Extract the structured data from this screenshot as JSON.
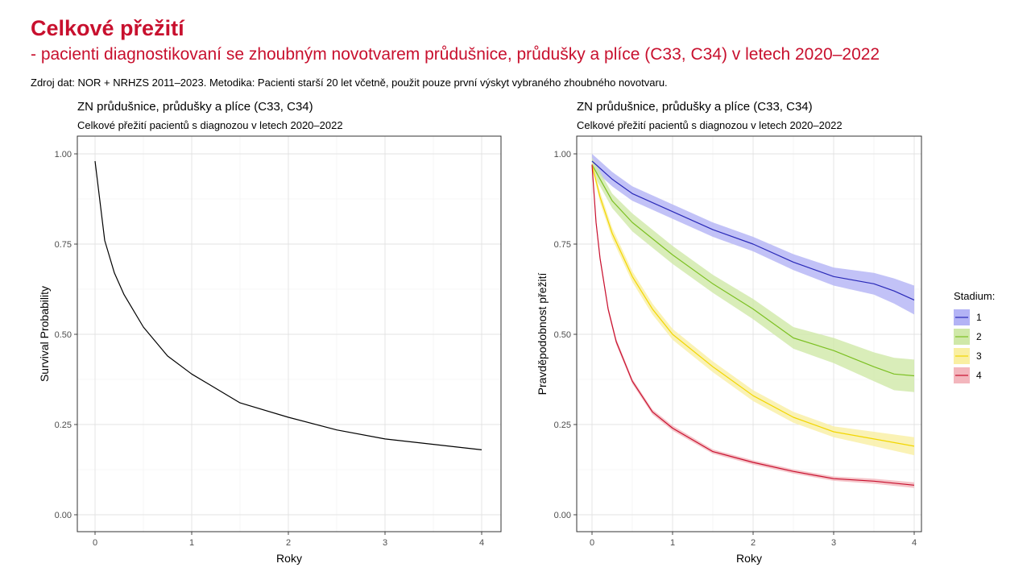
{
  "header": {
    "title": "Celkové přežití",
    "subtitle": "- pacienti diagnostikovaní se zhoubným novotvarem průdušnice, průdušky a plíce (C33, C34) v letech 2020–2022",
    "source": "Zdroj dat: NOR + NRHZS 2011–2023. Metodika: Pacienti starší 20 let včetně, použit pouze první výskyt vybraného zhoubného novotvaru."
  },
  "chart_data": [
    {
      "type": "line",
      "title": "ZN průdušnice, průdušky a plíce (C33, C34)",
      "subtitle": "Celkové přežití pacientů s diagnozou v letech 2020–2022",
      "xlabel": "Roky",
      "ylabel": "Survival Probability",
      "xlim": [
        0,
        4
      ],
      "ylim": [
        0,
        1
      ],
      "xticks": [
        "0",
        "1",
        "2",
        "3",
        "4"
      ],
      "yticks": [
        "0.00",
        "0.25",
        "0.50",
        "0.75",
        "1.00"
      ],
      "grid": true,
      "series": [
        {
          "color": "#000000",
          "x": [
            0,
            0.1,
            0.2,
            0.3,
            0.5,
            0.75,
            1.0,
            1.5,
            2.0,
            2.5,
            3.0,
            3.5,
            4.0
          ],
          "values": [
            0.98,
            0.76,
            0.67,
            0.61,
            0.52,
            0.44,
            0.39,
            0.31,
            0.27,
            0.235,
            0.21,
            0.195,
            0.18
          ]
        }
      ]
    },
    {
      "type": "line",
      "title": "ZN průdušnice, průdušky a plíce (C33, C34)",
      "subtitle": "Celkové přežití pacientů s diagnozou v letech 2020–2022",
      "xlabel": "Roky",
      "ylabel": "Pravděpodobnost přežití",
      "xlim": [
        0,
        4
      ],
      "ylim": [
        0,
        1
      ],
      "xticks": [
        "0",
        "1",
        "2",
        "3",
        "4"
      ],
      "yticks": [
        "0.00",
        "0.25",
        "0.50",
        "0.75",
        "1.00"
      ],
      "grid": true,
      "legend": {
        "title": "Stadium:",
        "position": "right"
      },
      "series": [
        {
          "name": "1",
          "color": "#2929b8",
          "fill": "#b3b3f5",
          "x": [
            0,
            0.25,
            0.5,
            1.0,
            1.5,
            2.0,
            2.5,
            3.0,
            3.5,
            3.75,
            4.0
          ],
          "values": [
            0.98,
            0.93,
            0.89,
            0.84,
            0.79,
            0.75,
            0.7,
            0.66,
            0.64,
            0.62,
            0.595
          ],
          "band": [
            0.02,
            0.02,
            0.02,
            0.02,
            0.02,
            0.02,
            0.022,
            0.025,
            0.03,
            0.035,
            0.04
          ]
        },
        {
          "name": "2",
          "color": "#7cc022",
          "fill": "#cfe8a8",
          "x": [
            0,
            0.25,
            0.5,
            1.0,
            1.5,
            2.0,
            2.5,
            3.0,
            3.5,
            3.75,
            4.0
          ],
          "values": [
            0.97,
            0.87,
            0.81,
            0.72,
            0.64,
            0.57,
            0.49,
            0.455,
            0.41,
            0.39,
            0.385
          ],
          "band": [
            0.02,
            0.02,
            0.025,
            0.025,
            0.025,
            0.028,
            0.03,
            0.035,
            0.04,
            0.045,
            0.045
          ]
        },
        {
          "name": "3",
          "color": "#f2d600",
          "fill": "#f9efa2",
          "x": [
            0,
            0.1,
            0.25,
            0.5,
            0.75,
            1.0,
            1.5,
            2.0,
            2.5,
            3.0,
            3.5,
            4.0
          ],
          "values": [
            0.97,
            0.88,
            0.78,
            0.66,
            0.57,
            0.5,
            0.41,
            0.33,
            0.27,
            0.23,
            0.21,
            0.19
          ],
          "band": [
            0.01,
            0.015,
            0.015,
            0.015,
            0.015,
            0.015,
            0.015,
            0.015,
            0.015,
            0.015,
            0.02,
            0.025
          ]
        },
        {
          "name": "4",
          "color": "#c8102e",
          "fill": "#f3b6bd",
          "x": [
            0,
            0.05,
            0.1,
            0.2,
            0.3,
            0.5,
            0.75,
            1.0,
            1.5,
            2.0,
            2.5,
            3.0,
            3.5,
            4.0
          ],
          "values": [
            0.97,
            0.81,
            0.71,
            0.57,
            0.48,
            0.37,
            0.285,
            0.24,
            0.175,
            0.145,
            0.12,
            0.1,
            0.093,
            0.082
          ],
          "band": [
            0.005,
            0.008,
            0.008,
            0.008,
            0.008,
            0.007,
            0.007,
            0.007,
            0.006,
            0.006,
            0.006,
            0.006,
            0.007,
            0.008
          ]
        }
      ]
    }
  ]
}
